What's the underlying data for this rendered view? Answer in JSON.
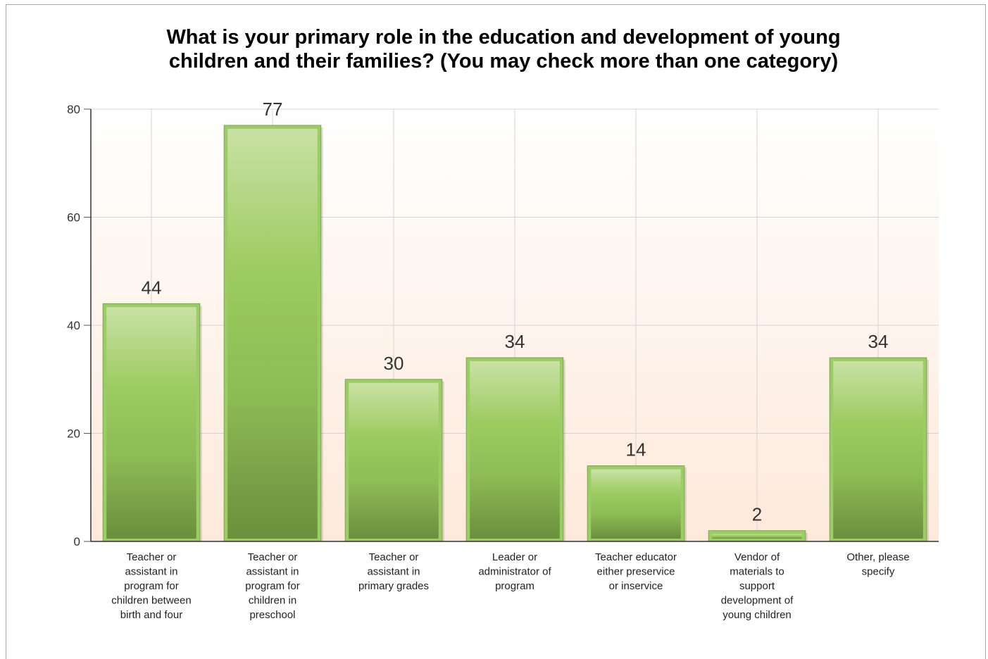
{
  "chart_data": {
    "type": "bar",
    "title_lines": [
      "What is your primary role in the education and development of young",
      "children and their families? (You may check more than one category)"
    ],
    "categories": [
      [
        "Teacher or",
        "assistant in",
        "program for",
        "children between",
        "birth and four"
      ],
      [
        "Teacher or",
        "assistant in",
        "program for",
        "children in",
        "preschool"
      ],
      [
        "Teacher or",
        "assistant in",
        "primary grades"
      ],
      [
        "Leader or",
        "administrator of",
        "program"
      ],
      [
        "Teacher educator",
        "either preservice",
        "or inservice"
      ],
      [
        "Vendor of",
        "materials to",
        "support",
        "development of",
        "young children"
      ],
      [
        "Other, please",
        "specify"
      ]
    ],
    "values": [
      44,
      77,
      30,
      34,
      14,
      2,
      34
    ],
    "ylim": [
      0,
      80
    ],
    "yticks": [
      0,
      20,
      40,
      60,
      80
    ],
    "grid": true,
    "bar_color": "#8fc45a",
    "bar_border_color": "#9ccc65",
    "bar_dark_color": "#6a8f3c",
    "background_gradient": [
      "#ffffff",
      "#fdeee2"
    ]
  }
}
